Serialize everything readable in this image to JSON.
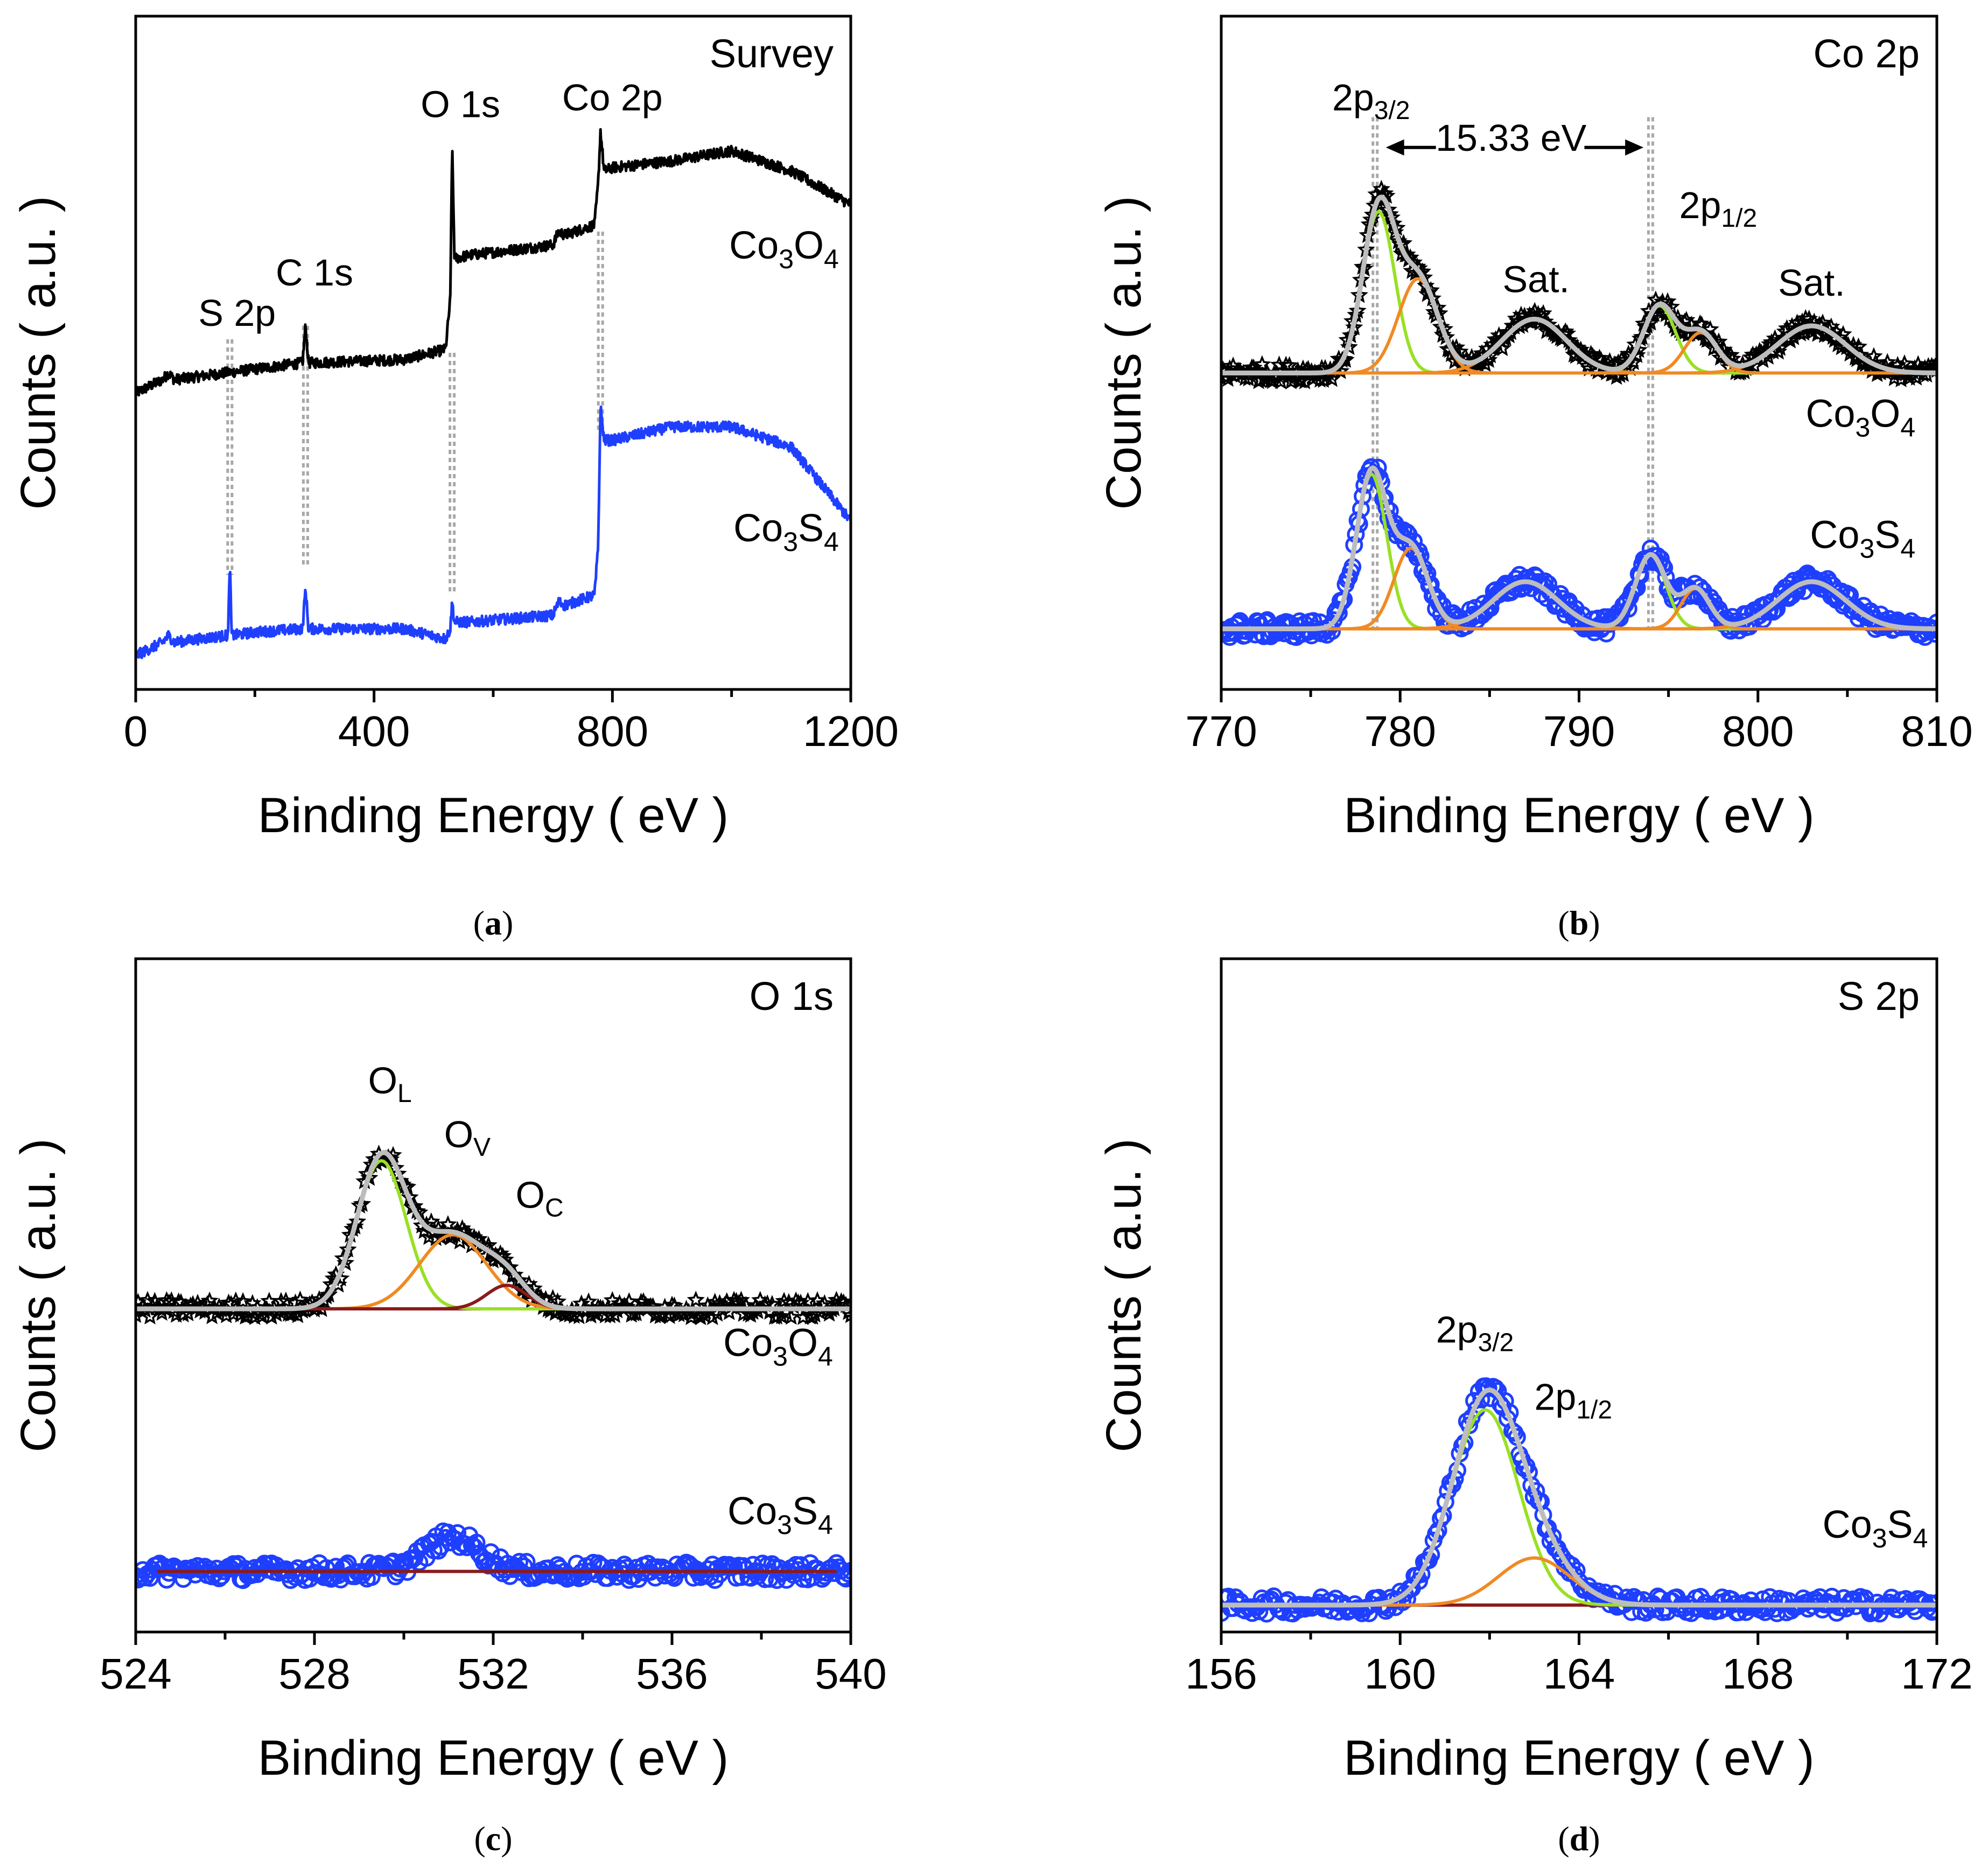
{
  "figure_captions": [
    {
      "open": "(",
      "letter": "a",
      "close": ")"
    },
    {
      "open": "(",
      "letter": "b",
      "close": ")"
    },
    {
      "open": "(",
      "letter": "c",
      "close": ")"
    },
    {
      "open": "(",
      "letter": "d",
      "close": ")"
    }
  ],
  "colors": {
    "co3o4": "#000000",
    "co3s4": "#1f3fff",
    "fit_envelope": "#bdbdbd",
    "peak_green": "#99e024",
    "peak_orange": "#f08a24",
    "peak_darkred": "#8b1a1a",
    "guide": "#a8a8a8"
  },
  "chart_data": [
    {
      "id": "a",
      "type": "line",
      "title": "Survey",
      "xlabel": "Binding Energy ( eV )",
      "ylabel": "Counts ( a.u. )",
      "xlim": [
        0,
        1200
      ],
      "ylim": [
        0,
        100
      ],
      "xticks": [
        0,
        400,
        800,
        1200
      ],
      "tick_labels": [
        "0",
        "400",
        "800",
        "1200"
      ],
      "guides": [
        158,
        285,
        531,
        780
      ],
      "series": [
        {
          "name": "Co3O4",
          "color": "#000000",
          "style": "noisy-line",
          "x": [
            0,
            45,
            55,
            65,
            150,
            280,
            285,
            290,
            450,
            520,
            528,
            531,
            535,
            560,
            700,
            710,
            720,
            770,
            776,
            780,
            786,
            800,
            900,
            1000,
            1100,
            1200
          ],
          "y": [
            44,
            46,
            47,
            46,
            47,
            48.5,
            54,
            48.5,
            49,
            50.5,
            58,
            81,
            64,
            64.5,
            66,
            68,
            67.5,
            69,
            75,
            83,
            77,
            77.5,
            78.5,
            80,
            77,
            72
          ]
        },
        {
          "name": "Co3S4",
          "color": "#1f3fff",
          "style": "noisy-line",
          "x": [
            0,
            45,
            55,
            65,
            150,
            155,
            158,
            161,
            200,
            280,
            285,
            290,
            450,
            520,
            528,
            531,
            535,
            560,
            700,
            710,
            720,
            770,
            776,
            780,
            786,
            800,
            900,
            1000,
            1100,
            1200
          ],
          "y": [
            5,
            7,
            8,
            7,
            8,
            8,
            19,
            8,
            8.5,
            9,
            15,
            9,
            9,
            7.5,
            9,
            13,
            10,
            10,
            11,
            13,
            12.5,
            14,
            21,
            42,
            37,
            37,
            39,
            39,
            36,
            25
          ]
        }
      ],
      "annotations": [
        {
          "text": "S 2p",
          "x": 105,
          "y": 54,
          "anchor": "start"
        },
        {
          "text": "C 1s",
          "x": 300,
          "y": 60,
          "anchor": "middle"
        },
        {
          "text": "O 1s",
          "x": 545,
          "y": 85,
          "anchor": "middle"
        },
        {
          "text": "Co 2p",
          "x": 800,
          "y": 86,
          "anchor": "middle"
        }
      ],
      "labels": [
        {
          "base": "Co",
          "sub1": "3",
          "mid": "O",
          "sub2": "4",
          "x": 1180,
          "y": 64
        },
        {
          "base": "Co",
          "sub1": "3",
          "mid": "S",
          "sub2": "4",
          "x": 1180,
          "y": 22
        }
      ]
    },
    {
      "id": "b",
      "type": "line",
      "title": "Co 2p",
      "xlabel": "Binding Energy ( eV )",
      "ylabel": "Counts ( a.u. )",
      "xlim": [
        770,
        810
      ],
      "ylim": [
        0,
        100
      ],
      "xticks": [
        770,
        780,
        790,
        800,
        810
      ],
      "tick_labels": [
        "770",
        "780",
        "790",
        "800",
        "810"
      ],
      "guides": [
        778.6,
        794.0
      ],
      "series": [
        {
          "name": "Co3O4",
          "color": "#000000",
          "marker": "star",
          "baseline": 47,
          "components": [
            {
              "center": 778.8,
              "amp": 24,
              "sigma": 0.9,
              "color": "#99e024"
            },
            {
              "center": 781.0,
              "amp": 14,
              "sigma": 1.1,
              "color": "#f08a24"
            },
            {
              "center": 787.5,
              "amp": 8,
              "sigma": 1.8,
              "color": "#f08a24"
            },
            {
              "center": 794.5,
              "amp": 10,
              "sigma": 0.9,
              "color": "#99e024"
            },
            {
              "center": 796.8,
              "amp": 6,
              "sigma": 0.9,
              "color": "#f08a24"
            },
            {
              "center": 803.0,
              "amp": 7,
              "sigma": 1.9,
              "color": "#f08a24"
            }
          ]
        },
        {
          "name": "Co3S4",
          "color": "#1f3fff",
          "marker": "circle",
          "baseline": 9,
          "components": [
            {
              "center": 778.4,
              "amp": 23,
              "sigma": 0.85,
              "color": "#99e024"
            },
            {
              "center": 780.6,
              "amp": 12,
              "sigma": 0.95,
              "color": "#f08a24"
            },
            {
              "center": 787.0,
              "amp": 7,
              "sigma": 1.8,
              "color": "#f08a24"
            },
            {
              "center": 794.0,
              "amp": 11,
              "sigma": 0.85,
              "color": "#99e024"
            },
            {
              "center": 796.5,
              "amp": 6,
              "sigma": 0.8,
              "color": "#f08a24"
            },
            {
              "center": 803.0,
              "amp": 7,
              "sigma": 1.9,
              "color": "#f08a24"
            }
          ]
        }
      ],
      "annotations": [
        {
          "text": "Sat.",
          "x": 787.6,
          "y": 59,
          "anchor": "middle"
        },
        {
          "text": "Sat.",
          "x": 803.0,
          "y": 58.5,
          "anchor": "middle"
        },
        {
          "text": "15.33 eV",
          "x": 786.2,
          "y": 80,
          "anchor": "middle"
        }
      ],
      "sub_annotations": [
        {
          "base": "2p",
          "sub": "3/2",
          "x": 776.2,
          "y": 86
        },
        {
          "base": "2p",
          "sub": "1/2",
          "x": 795.6,
          "y": 70
        }
      ],
      "arrows": [
        {
          "x1": 782.0,
          "x2": 779.2,
          "y": 80.5
        },
        {
          "x1": 790.3,
          "x2": 793.6,
          "y": 80.5
        }
      ],
      "labels": [
        {
          "base": "Co",
          "sub1": "3",
          "mid": "O",
          "sub2": "4",
          "x": 808.8,
          "y": 39
        },
        {
          "base": "Co",
          "sub1": "3",
          "mid": "S",
          "sub2": "4",
          "x": 808.8,
          "y": 21
        }
      ]
    },
    {
      "id": "c",
      "type": "line",
      "title": "O 1s",
      "xlabel": "Binding Energy ( eV )",
      "ylabel": "Counts ( a.u. )",
      "xlim": [
        524,
        540
      ],
      "ylim": [
        0,
        100
      ],
      "xticks": [
        524,
        528,
        532,
        536,
        540
      ],
      "tick_labels": [
        "524",
        "528",
        "532",
        "536",
        "540"
      ],
      "guides": [],
      "series": [
        {
          "name": "Co3O4",
          "color": "#000000",
          "marker": "star",
          "baseline": 48,
          "components": [
            {
              "center": 529.5,
              "amp": 22,
              "sigma": 0.55,
              "color": "#99e024"
            },
            {
              "center": 531.1,
              "amp": 11,
              "sigma": 0.75,
              "color": "#f08a24"
            },
            {
              "center": 532.3,
              "amp": 3.5,
              "sigma": 0.45,
              "color": "#8b1a1a"
            }
          ]
        },
        {
          "name": "Co3S4",
          "color": "#1f3fff",
          "marker": "circle",
          "baseline": 9,
          "components": [
            {
              "center": 531.1,
              "amp": 5,
              "sigma": 0.6,
              "color": "none"
            }
          ]
        }
      ],
      "sub_annotations": [
        {
          "base": "O",
          "sub": "L",
          "x": 529.2,
          "y": 80
        },
        {
          "base": "O",
          "sub": "V",
          "x": 530.9,
          "y": 72
        },
        {
          "base": "O",
          "sub": "C",
          "x": 532.5,
          "y": 63
        }
      ],
      "labels": [
        {
          "base": "Co",
          "sub1": "3",
          "mid": "O",
          "sub2": "4",
          "x": 539.6,
          "y": 41
        },
        {
          "base": "Co",
          "sub1": "3",
          "mid": "S",
          "sub2": "4",
          "x": 539.6,
          "y": 16
        }
      ]
    },
    {
      "id": "d",
      "type": "line",
      "title": "S 2p",
      "xlabel": "Binding Energy ( eV )",
      "ylabel": "Counts ( a.u. )",
      "xlim": [
        156,
        172
      ],
      "ylim": [
        0,
        100
      ],
      "xticks": [
        156,
        160,
        164,
        168,
        172
      ],
      "tick_labels": [
        "156",
        "160",
        "164",
        "168",
        "172"
      ],
      "guides": [],
      "series": [
        {
          "name": "Co3S4",
          "color": "#1f3fff",
          "marker": "circle",
          "baseline": 4,
          "components": [
            {
              "center": 161.9,
              "amp": 29,
              "sigma": 0.75,
              "color": "#99e024"
            },
            {
              "center": 163.0,
              "amp": 7,
              "sigma": 0.8,
              "color": "#f08a24"
            }
          ]
        }
      ],
      "sub_annotations": [
        {
          "base": "2p",
          "sub": "3/2",
          "x": 160.8,
          "y": 43
        },
        {
          "base": "2p",
          "sub": "1/2",
          "x": 163.0,
          "y": 33
        }
      ],
      "labels": [
        {
          "base": "Co",
          "sub1": "3",
          "mid": "S",
          "sub2": "4",
          "x": 171.8,
          "y": 14
        }
      ]
    }
  ]
}
